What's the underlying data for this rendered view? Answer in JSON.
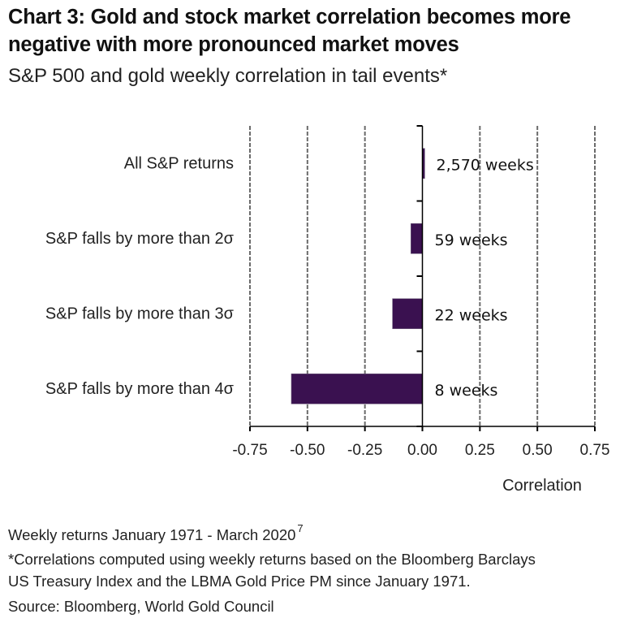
{
  "header": {
    "title": "Chart 3: Gold and stock market correlation becomes more negative with more pronounced market moves",
    "subtitle": "S&P 500 and gold weekly correlation in tail events*"
  },
  "footer": {
    "period": "Weekly returns January 1971 - March 2020",
    "period_footnote": "7",
    "note_line1": "*Correlations computed using weekly returns based on the Bloomberg Barclays",
    "note_line2": "US Treasury Index and the LBMA Gold Price PM since January 1971.",
    "source": "Source: Bloomberg, World Gold Council"
  },
  "chart_data": {
    "type": "bar",
    "orientation": "horizontal",
    "title": "S&P 500 and gold weekly correlation in tail events*",
    "categories": [
      "All S&P returns",
      "S&P falls by more than 2σ",
      "S&P falls by more than 3σ",
      "S&P falls by more than 4σ"
    ],
    "values": [
      0.01,
      -0.05,
      -0.13,
      -0.57
    ],
    "data_labels": [
      "2,570 weeks",
      "59 weeks",
      "22 weeks",
      "8 weeks"
    ],
    "xlabel": "Correlation",
    "ylabel": "",
    "xlim": [
      -0.75,
      0.75
    ],
    "xticks": [
      -0.75,
      -0.5,
      -0.25,
      0.0,
      0.25,
      0.5,
      0.75
    ],
    "xtick_labels": [
      "-0.75",
      "-0.50",
      "-0.25",
      "0.00",
      "0.25",
      "0.50",
      "0.75"
    ],
    "grid": "vertical dashed",
    "legend": "none",
    "bar_color": "#3a1150"
  }
}
